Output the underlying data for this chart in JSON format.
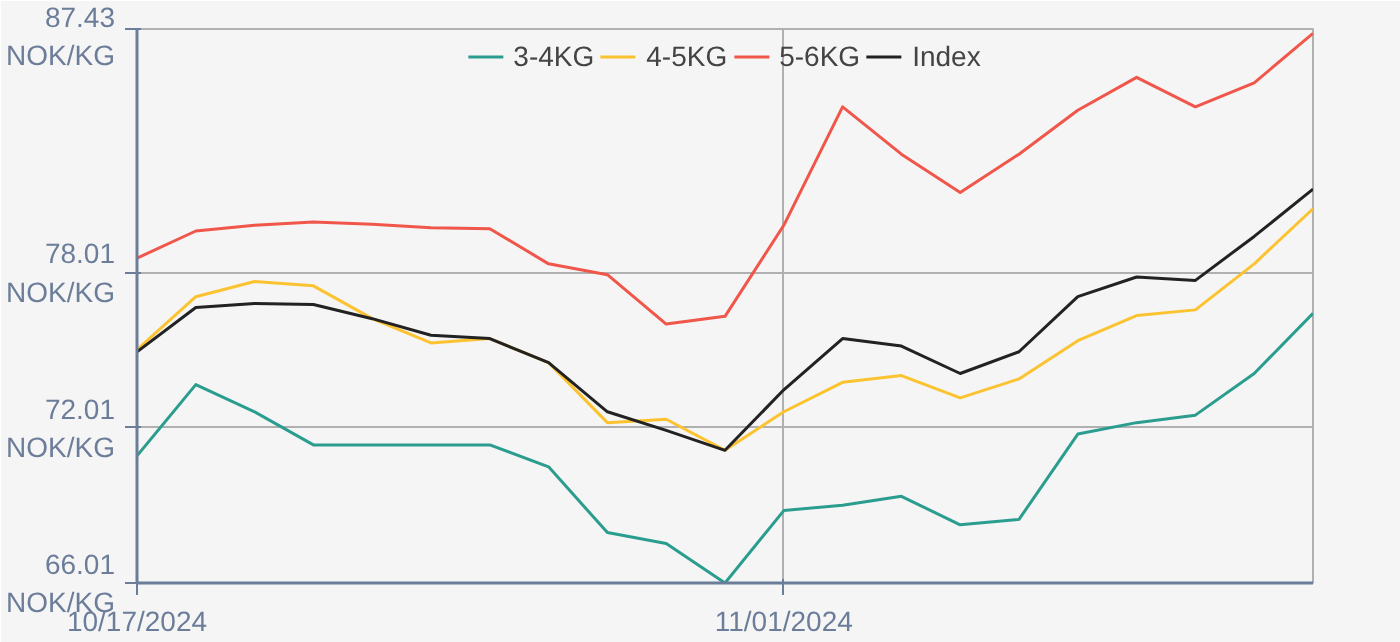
{
  "chart_data": {
    "type": "line",
    "categories": [
      "10/17/2024",
      null,
      null,
      null,
      null,
      null,
      null,
      null,
      null,
      null,
      null,
      "11/01/2024",
      null,
      null,
      null,
      null,
      null,
      null,
      null,
      null,
      null
    ],
    "series": [
      {
        "name": "3-4KG",
        "color": "#2a9d8f",
        "values": [
          70.93,
          73.68,
          72.63,
          71.35,
          71.35,
          71.35,
          71.35,
          70.5,
          67.96,
          67.54,
          66.01,
          68.81,
          69.02,
          69.36,
          68.26,
          68.47,
          71.77,
          72.21,
          72.5,
          74.11,
          76.44
        ]
      },
      {
        "name": "4-5KG",
        "color": "#fcc331",
        "values": [
          75.03,
          77.08,
          77.67,
          77.5,
          76.23,
          75.29,
          75.46,
          74.53,
          72.21,
          72.34,
          71.14,
          72.63,
          73.77,
          74.03,
          73.17,
          73.9,
          75.38,
          76.35,
          76.57,
          78.35,
          80.48
        ]
      },
      {
        "name": "5-6KG",
        "color": "#f0564a",
        "values": [
          78.57,
          79.62,
          79.84,
          79.97,
          79.88,
          79.75,
          79.71,
          78.35,
          77.93,
          76.02,
          76.32,
          79.84,
          84.42,
          82.59,
          81.11,
          82.59,
          84.29,
          85.56,
          84.42,
          85.35,
          87.26
        ]
      },
      {
        "name": "Index",
        "color": "#222222",
        "values": [
          74.95,
          76.66,
          76.82,
          76.78,
          76.23,
          75.59,
          75.46,
          74.53,
          72.63,
          71.91,
          71.14,
          73.48,
          75.46,
          75.17,
          74.11,
          74.95,
          77.08,
          77.84,
          77.71,
          79.41,
          81.24
        ]
      }
    ],
    "ylim": [
      66.01,
      87.43
    ],
    "yticks": [
      {
        "value": 66.01,
        "label": "66.01\nNOK/KG"
      },
      {
        "value": 72.01,
        "label": "72.01\nNOK/KG"
      },
      {
        "value": 78.01,
        "label": "78.01\nNOK/KG"
      },
      {
        "value": 87.43,
        "label": "87.43\nNOK/KG"
      }
    ],
    "grid": true,
    "legend": "top",
    "line_style": "solid"
  }
}
